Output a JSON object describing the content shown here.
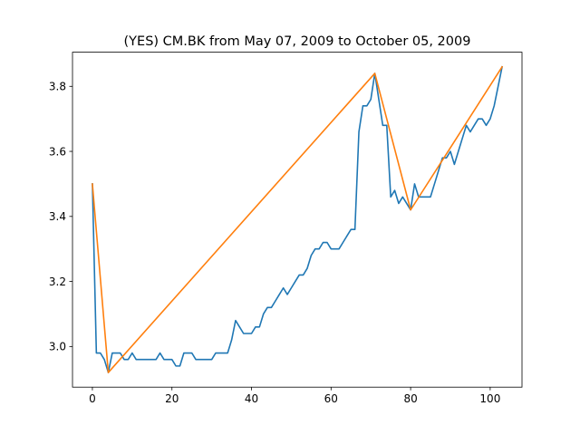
{
  "chart_data": {
    "type": "line",
    "title": "(YES) CM.BK from May 07, 2009 to October 05, 2009",
    "xlabel": "",
    "ylabel": "",
    "xlim": [
      -5,
      108
    ],
    "ylim": [
      2.875,
      3.905
    ],
    "xticks": [
      0,
      20,
      40,
      60,
      80,
      100
    ],
    "yticks": [
      3.0,
      3.2,
      3.4,
      3.6,
      3.8
    ],
    "ytick_labels": [
      "3.0",
      "3.2",
      "3.4",
      "3.6",
      "3.8"
    ],
    "grid": false,
    "series": [
      {
        "color": "#1f77b4",
        "x": [
          0,
          1,
          2,
          3,
          4,
          5,
          6,
          7,
          8,
          9,
          10,
          11,
          12,
          13,
          14,
          15,
          16,
          17,
          18,
          19,
          20,
          21,
          22,
          23,
          24,
          25,
          26,
          27,
          28,
          29,
          30,
          31,
          32,
          33,
          34,
          35,
          36,
          37,
          38,
          39,
          40,
          41,
          42,
          43,
          44,
          45,
          46,
          47,
          48,
          49,
          50,
          51,
          52,
          53,
          54,
          55,
          56,
          57,
          58,
          59,
          60,
          61,
          62,
          63,
          64,
          65,
          66,
          67,
          68,
          69,
          70,
          71,
          72,
          73,
          74,
          75,
          76,
          77,
          78,
          79,
          80,
          81,
          82,
          83,
          84,
          85,
          86,
          87,
          88,
          89,
          90,
          91,
          92,
          93,
          94,
          95,
          96,
          97,
          98,
          99,
          100,
          101,
          102,
          103
        ],
        "y": [
          3.5,
          2.98,
          2.98,
          2.96,
          2.92,
          2.98,
          2.98,
          2.98,
          2.96,
          2.96,
          2.98,
          2.96,
          2.96,
          2.96,
          2.96,
          2.96,
          2.96,
          2.98,
          2.96,
          2.96,
          2.96,
          2.94,
          2.94,
          2.98,
          2.98,
          2.98,
          2.96,
          2.96,
          2.96,
          2.96,
          2.96,
          2.98,
          2.98,
          2.98,
          2.98,
          3.02,
          3.08,
          3.06,
          3.04,
          3.04,
          3.04,
          3.06,
          3.06,
          3.1,
          3.12,
          3.12,
          3.14,
          3.16,
          3.18,
          3.16,
          3.18,
          3.2,
          3.22,
          3.22,
          3.24,
          3.28,
          3.3,
          3.3,
          3.32,
          3.32,
          3.3,
          3.3,
          3.3,
          3.32,
          3.34,
          3.36,
          3.36,
          3.66,
          3.74,
          3.74,
          3.76,
          3.84,
          3.76,
          3.68,
          3.68,
          3.46,
          3.48,
          3.44,
          3.46,
          3.44,
          3.42,
          3.5,
          3.46,
          3.46,
          3.46,
          3.46,
          3.5,
          3.54,
          3.58,
          3.58,
          3.6,
          3.56,
          3.6,
          3.64,
          3.68,
          3.66,
          3.68,
          3.7,
          3.7,
          3.68,
          3.7,
          3.74,
          3.8,
          3.86
        ]
      },
      {
        "color": "#ff7f0e",
        "x": [
          0,
          4,
          71,
          80,
          103
        ],
        "y": [
          3.5,
          2.92,
          3.84,
          3.42,
          3.86
        ]
      }
    ]
  }
}
